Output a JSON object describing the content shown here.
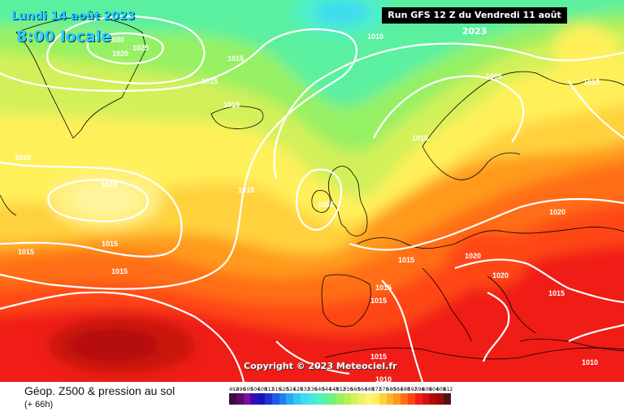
{
  "header": {
    "date": "Lundi 14 août 2023",
    "time": "8:00 locale",
    "run": "Run GFS 12 Z du Vendredi 11 août 2023"
  },
  "copyright": "Copyright © 2023 Meteociel.fr",
  "legend": {
    "title": "Géop. Z500 & pression au sol",
    "subtitle": "(+ 66h)",
    "scale_values": [
      "492",
      "496",
      "500",
      "504",
      "508",
      "512",
      "516",
      "520",
      "524",
      "528",
      "532",
      "536",
      "540",
      "544",
      "548",
      "552",
      "556",
      "560",
      "564",
      "568",
      "572",
      "576",
      "580",
      "584",
      "588",
      "592",
      "596",
      "600",
      "604",
      "608",
      "612"
    ],
    "scale_colors": [
      "#3f0a3f",
      "#5a0a6e",
      "#7a109e",
      "#3c0ab4",
      "#1414be",
      "#1e32d2",
      "#1e5ae6",
      "#1e82f0",
      "#28aaf0",
      "#32c8f0",
      "#3cdcf0",
      "#46e6e6",
      "#50f0c8",
      "#5af0a0",
      "#78f078",
      "#96f064",
      "#b4f050",
      "#d2f05a",
      "#f0f064",
      "#fff082",
      "#fff05a",
      "#ffd23c",
      "#ffb428",
      "#ff961e",
      "#ff6e14",
      "#ff4614",
      "#f01e14",
      "#d2140f",
      "#b40a0a",
      "#960a0a",
      "#501414"
    ]
  },
  "isobars": [
    {
      "label": "1030",
      "kind": "label"
    },
    {
      "label": "1025",
      "kind": "label"
    },
    {
      "label": "1020",
      "kind": "label"
    },
    {
      "label": "1015",
      "kind": "label"
    },
    {
      "label": "1015",
      "kind": "label"
    },
    {
      "label": "1010",
      "kind": "label"
    },
    {
      "label": "1015",
      "kind": "label"
    },
    {
      "label": "1005",
      "kind": "label"
    },
    {
      "label": "1015",
      "kind": "label"
    },
    {
      "label": "1010",
      "kind": "label"
    },
    {
      "label": "1020",
      "kind": "label"
    },
    {
      "label": "1010",
      "kind": "label"
    },
    {
      "label": "1015",
      "kind": "label"
    },
    {
      "label": "1005",
      "kind": "label"
    },
    {
      "label": "1015",
      "kind": "label"
    },
    {
      "label": "1015",
      "kind": "label"
    },
    {
      "label": "1020",
      "kind": "label"
    },
    {
      "label": "1015",
      "kind": "label"
    },
    {
      "label": "1020",
      "kind": "label"
    },
    {
      "label": "1015",
      "kind": "label"
    },
    {
      "label": "1020",
      "kind": "label"
    },
    {
      "label": "1015",
      "kind": "label"
    },
    {
      "label": "1015",
      "kind": "label"
    },
    {
      "label": "1015",
      "kind": "label"
    },
    {
      "label": "1010",
      "kind": "label"
    },
    {
      "label": "1015",
      "kind": "label"
    },
    {
      "label": "1010",
      "kind": "label"
    }
  ]
}
